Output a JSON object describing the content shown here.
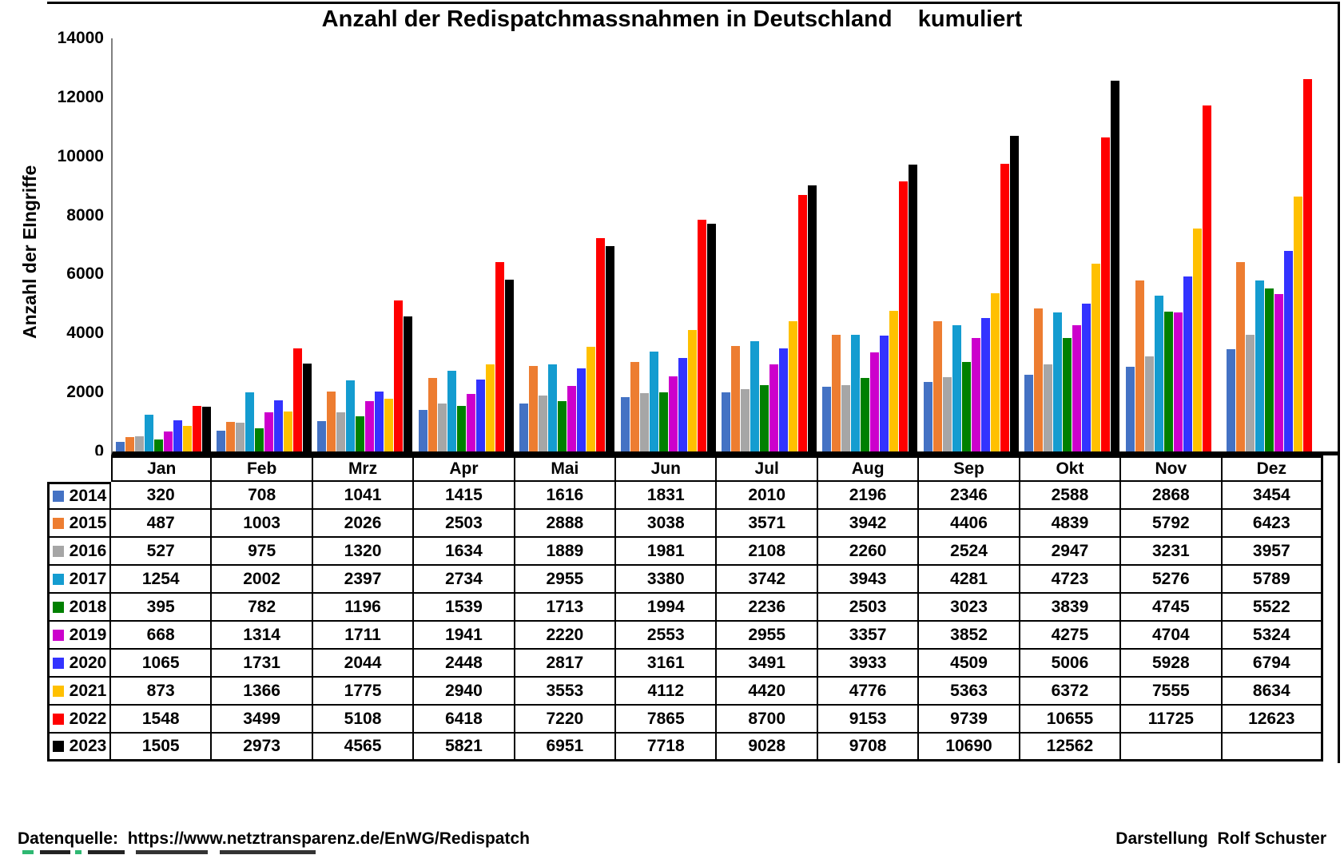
{
  "title": "Anzahl der Redispatchmassnahmen in Deutschland    kumuliert",
  "y_axis": {
    "label": "Anzahl der EIngriffe",
    "ticks": [
      0,
      2000,
      4000,
      6000,
      8000,
      10000,
      12000,
      14000
    ]
  },
  "footer": {
    "source": "Datenquelle:  https://www.netztransparenz.de/EnWG/Redispatch",
    "credit": "Darstellung  Rolf Schuster"
  },
  "colors": {
    "axis_line": "#808080",
    "baseline": "#000000",
    "table_border": "#000000"
  },
  "chart_data": {
    "type": "bar",
    "title": "Anzahl der Redispatchmassnahmen in Deutschland    kumuliert",
    "xlabel": "",
    "ylabel": "Anzahl der EIngriffe",
    "ylim": [
      0,
      14000
    ],
    "grid": false,
    "legend_position": "table-left",
    "categories": [
      "Jan",
      "Feb",
      "Mrz",
      "Apr",
      "Mai",
      "Jun",
      "Jul",
      "Aug",
      "Sep",
      "Okt",
      "Nov",
      "Dez"
    ],
    "series": [
      {
        "name": "2014",
        "color": "#4472C4",
        "values": [
          320,
          708,
          1041,
          1415,
          1616,
          1831,
          2010,
          2196,
          2346,
          2588,
          2868,
          3454
        ]
      },
      {
        "name": "2015",
        "color": "#ED7D31",
        "values": [
          487,
          1003,
          2026,
          2503,
          2888,
          3038,
          3571,
          3942,
          4406,
          4839,
          5792,
          6423
        ]
      },
      {
        "name": "2016",
        "color": "#A6A6A6",
        "values": [
          527,
          975,
          1320,
          1634,
          1889,
          1981,
          2108,
          2260,
          2524,
          2947,
          3231,
          3957
        ]
      },
      {
        "name": "2017",
        "color": "#149CD0",
        "values": [
          1254,
          2002,
          2397,
          2734,
          2955,
          3380,
          3742,
          3943,
          4281,
          4723,
          5276,
          5789
        ]
      },
      {
        "name": "2018",
        "color": "#008000",
        "values": [
          395,
          782,
          1196,
          1539,
          1713,
          1994,
          2236,
          2503,
          3023,
          3839,
          4745,
          5522
        ]
      },
      {
        "name": "2019",
        "color": "#CC00CC",
        "values": [
          668,
          1314,
          1711,
          1941,
          2220,
          2553,
          2955,
          3357,
          3852,
          4275,
          4704,
          5324
        ]
      },
      {
        "name": "2020",
        "color": "#3333FF",
        "values": [
          1065,
          1731,
          2044,
          2448,
          2817,
          3161,
          3491,
          3933,
          4509,
          5006,
          5928,
          6794
        ]
      },
      {
        "name": "2021",
        "color": "#FFC000",
        "values": [
          873,
          1366,
          1775,
          2940,
          3553,
          4112,
          4420,
          4776,
          5363,
          6372,
          7555,
          8634
        ]
      },
      {
        "name": "2022",
        "color": "#FF0000",
        "values": [
          1548,
          3499,
          5108,
          6418,
          7220,
          7865,
          8700,
          9153,
          9739,
          10655,
          11725,
          12623
        ]
      },
      {
        "name": "2023",
        "color": "#000000",
        "values": [
          1505,
          2973,
          4565,
          5821,
          6951,
          7718,
          9028,
          9708,
          10690,
          12562,
          null,
          null
        ]
      }
    ]
  }
}
